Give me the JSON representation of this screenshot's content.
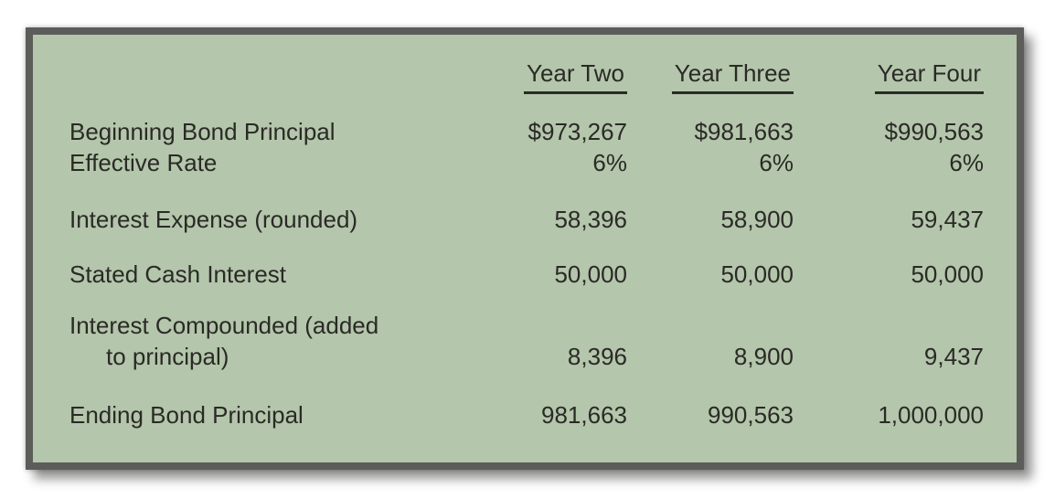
{
  "colors": {
    "page_background": "#ffffff",
    "panel_background": "#b4c6ab",
    "panel_border": "#5c5c5a",
    "text": "#2a2a26"
  },
  "table": {
    "column_headers": [
      "Year Two",
      "Year Three",
      "Year Four"
    ],
    "rows": [
      {
        "label": "Beginning Bond Principal",
        "values": [
          "$973,267",
          "$981,663",
          "$990,563"
        ]
      },
      {
        "label": "Effective Rate",
        "values": [
          "6%",
          "6%",
          "6%"
        ]
      },
      {
        "label": "Interest Expense (rounded)",
        "values": [
          "58,396",
          "58,900",
          "59,437"
        ]
      },
      {
        "label": "Stated Cash Interest",
        "values": [
          "50,000",
          "50,000",
          "50,000"
        ]
      },
      {
        "label_line1": "Interest Compounded (added",
        "label_line2": "to principal)",
        "values": [
          "8,396",
          "8,900",
          "9,437"
        ]
      },
      {
        "label": "Ending Bond Principal",
        "values": [
          "981,663",
          "990,563",
          "1,000,000"
        ]
      }
    ]
  }
}
